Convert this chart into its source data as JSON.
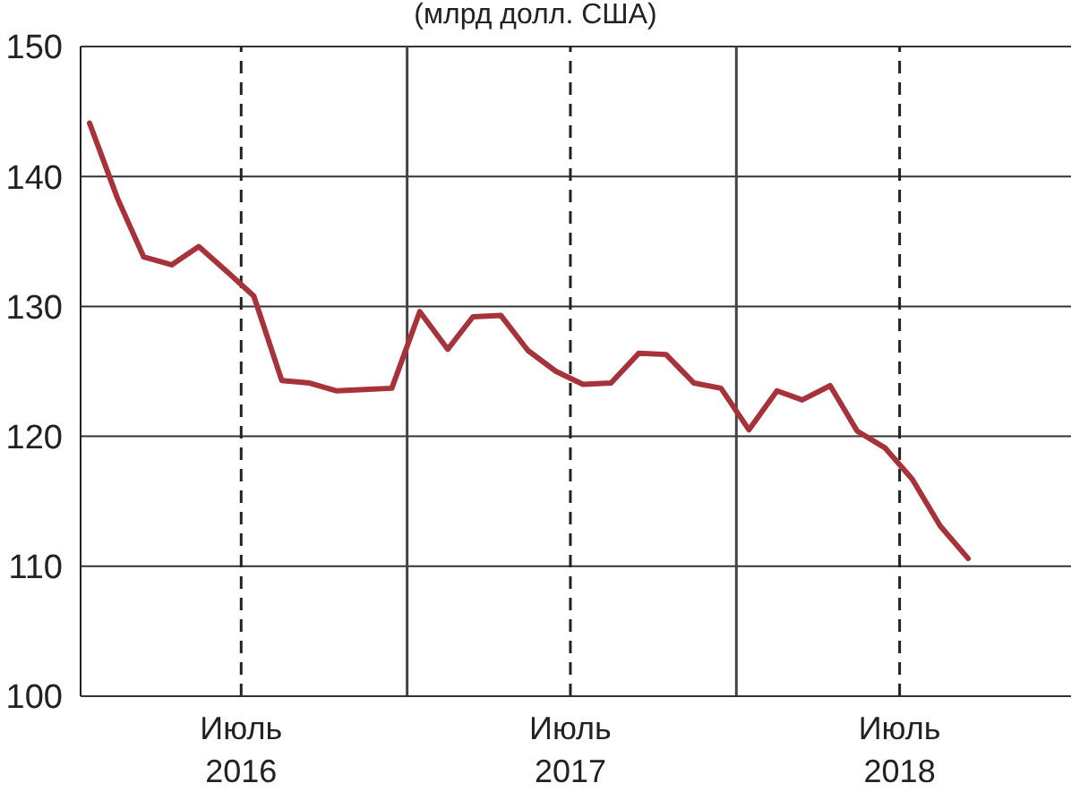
{
  "chart_data": {
    "type": "line",
    "title": "(млрд долл. США)",
    "x": [
      "2016-01-15",
      "2016-02-15",
      "2016-03-15",
      "2016-04-15",
      "2016-05-15",
      "2016-06-15",
      "2016-07-15",
      "2016-08-15",
      "2016-09-15",
      "2016-10-15",
      "2016-11-15",
      "2016-12-15",
      "2017-01-15",
      "2017-02-15",
      "2017-03-15",
      "2017-04-15",
      "2017-05-15",
      "2017-06-15",
      "2017-07-15",
      "2017-08-15",
      "2017-09-15",
      "2017-10-15",
      "2017-11-15",
      "2017-12-15",
      "2018-01-15",
      "2018-02-15",
      "2018-03-15",
      "2018-04-15",
      "2018-05-15",
      "2018-06-15",
      "2018-07-15",
      "2018-08-15",
      "2018-09-15"
    ],
    "series": [
      {
        "color": "#a8323a",
        "values": [
          144.1,
          138.3,
          133.8,
          133.2,
          134.6,
          132.7,
          130.8,
          124.3,
          124.1,
          123.5,
          123.6,
          123.7,
          129.6,
          126.7,
          129.2,
          129.3,
          126.6,
          125.0,
          124.0,
          124.1,
          126.4,
          126.3,
          124.1,
          123.7,
          120.5,
          123.5,
          122.8,
          123.9,
          120.4,
          119.1,
          116.7,
          113.1,
          110.6
        ]
      }
    ],
    "xlim": [
      "2016-01-05",
      "2019-01-07"
    ],
    "xticks": [
      {
        "value": "2016-07-01",
        "label": "Июль\n2016"
      },
      {
        "value": "2017-07-01",
        "label": "Июль\n2017"
      },
      {
        "value": "2018-07-01",
        "label": "Июль\n2018"
      }
    ],
    "ylim": [
      100,
      150
    ],
    "yticks": [
      100,
      110,
      120,
      130,
      140,
      150
    ],
    "grid": "y",
    "marker": "none",
    "line_style": "solid",
    "ref_lines": [
      {
        "axis": "x",
        "value": "2016-07-01",
        "color": "#222222",
        "line_style": "dashed"
      },
      {
        "axis": "x",
        "value": "2017-01-01",
        "color": "#444444",
        "line_style": "solid"
      },
      {
        "axis": "x",
        "value": "2017-07-01",
        "color": "#222222",
        "line_style": "dashed"
      },
      {
        "axis": "x",
        "value": "2018-01-01",
        "color": "#444444",
        "line_style": "solid"
      },
      {
        "axis": "x",
        "value": "2018-07-01",
        "color": "#222222",
        "line_style": "dashed"
      }
    ]
  }
}
